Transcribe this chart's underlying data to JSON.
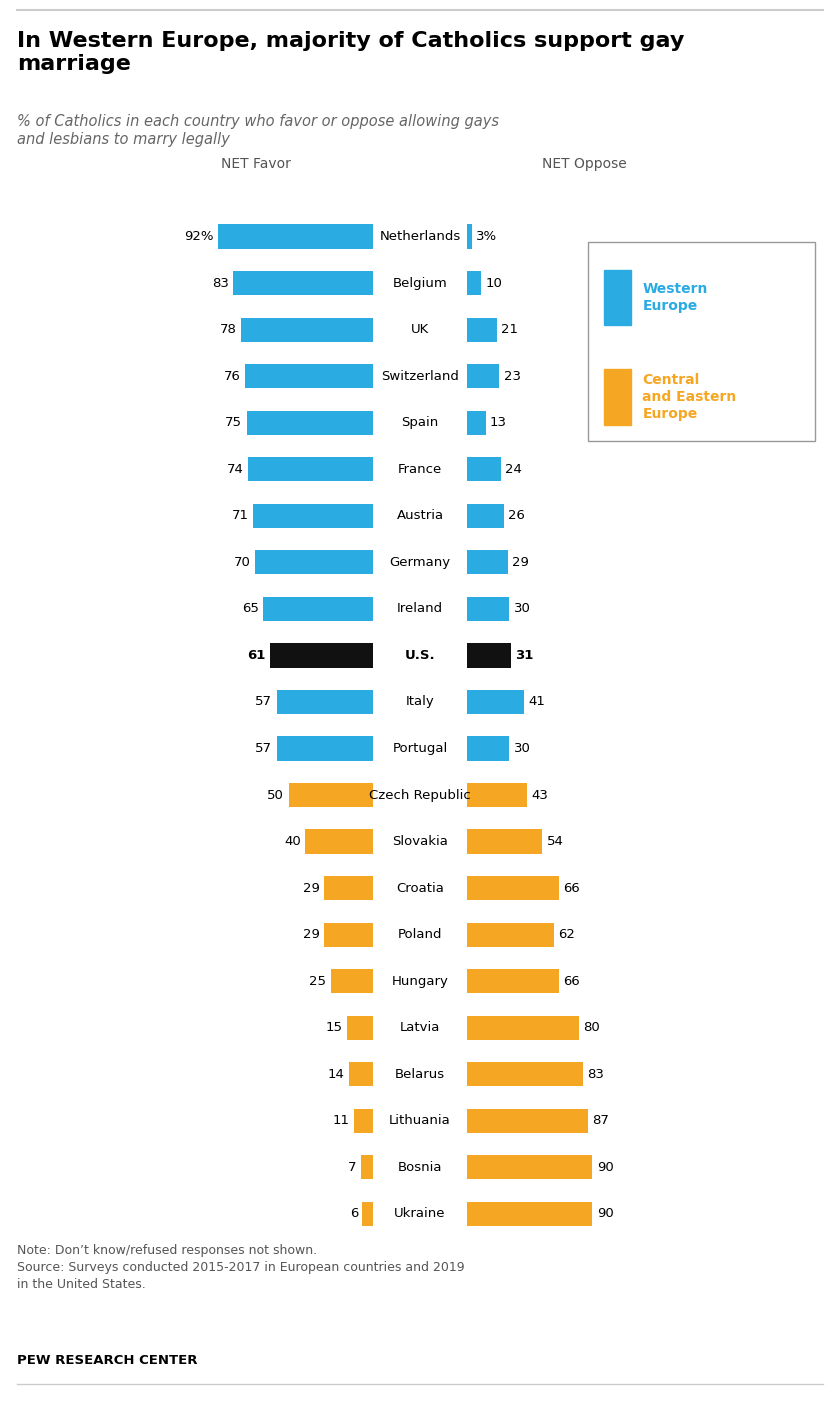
{
  "title": "In Western Europe, majority of Catholics support gay\nmarriage",
  "subtitle": "% of Catholics in each country who favor or oppose allowing gays\nand lesbians to marry legally",
  "countries": [
    "Netherlands",
    "Belgium",
    "UK",
    "Switzerland",
    "Spain",
    "France",
    "Austria",
    "Germany",
    "Ireland",
    "U.S.",
    "Italy",
    "Portugal",
    "Czech Republic",
    "Slovakia",
    "Croatia",
    "Poland",
    "Hungary",
    "Latvia",
    "Belarus",
    "Lithuania",
    "Bosnia",
    "Ukraine"
  ],
  "favor": [
    92,
    83,
    78,
    76,
    75,
    74,
    71,
    70,
    65,
    61,
    57,
    57,
    50,
    40,
    29,
    29,
    25,
    15,
    14,
    11,
    7,
    6
  ],
  "oppose": [
    3,
    10,
    21,
    23,
    13,
    24,
    26,
    29,
    30,
    31,
    41,
    30,
    43,
    54,
    66,
    62,
    66,
    80,
    83,
    87,
    90,
    90
  ],
  "region": [
    "W",
    "W",
    "W",
    "W",
    "W",
    "W",
    "W",
    "W",
    "W",
    "US",
    "W",
    "W",
    "E",
    "E",
    "E",
    "E",
    "E",
    "E",
    "E",
    "E",
    "E",
    "E"
  ],
  "color_west": "#2AABE2",
  "color_east": "#F5A623",
  "color_us": "#111111",
  "note_line1": "Note: Don’t know/refused responses not shown.",
  "note_line2": "Source: Surveys conducted 2015-2017 in European countries and 2019",
  "note_line3": "in the United States.",
  "source": "PEW RESEARCH CENTER"
}
